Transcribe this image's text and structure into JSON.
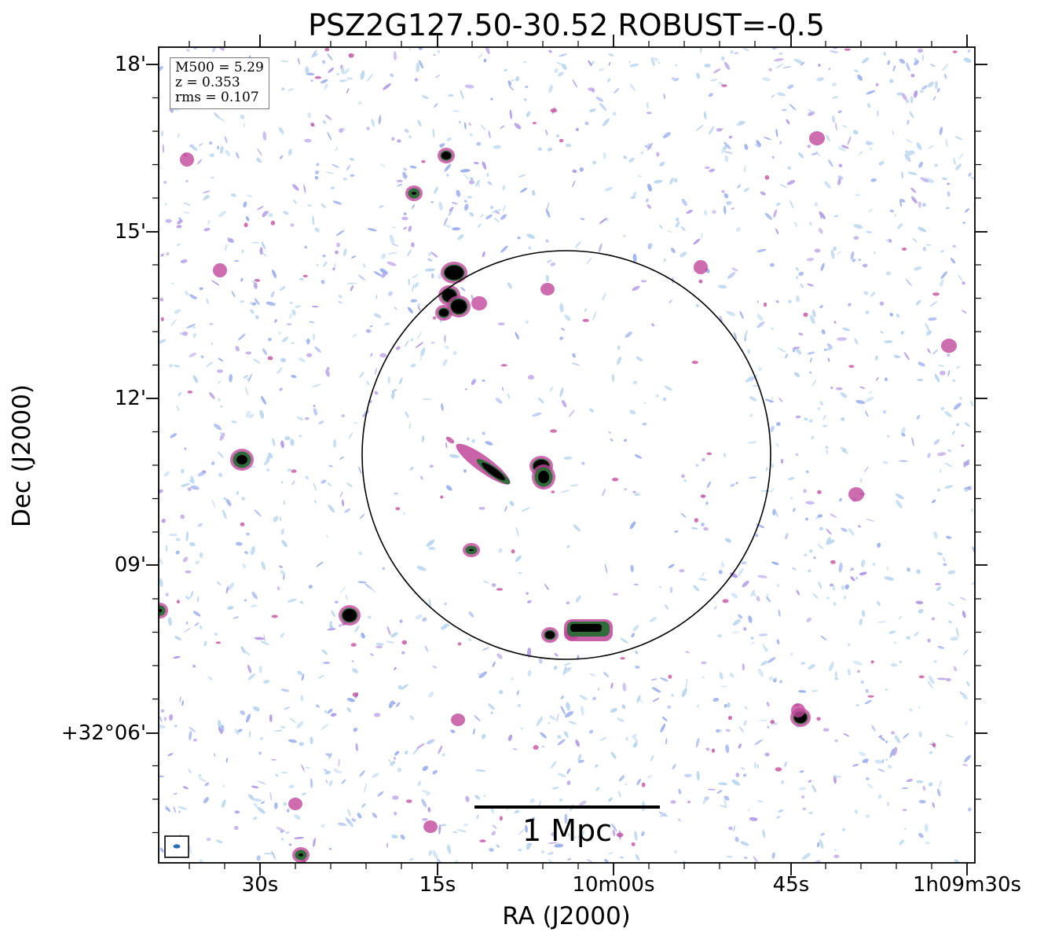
{
  "title": "PSZ2G127.50-30.52 ROBUST=-0.5",
  "axes": {
    "xlabel": "RA (J2000)",
    "ylabel": "Dec (J2000)",
    "x_ticks": [
      "30s",
      "15s",
      "10m00s",
      "45s",
      "1h09m30s"
    ],
    "y_ticks": [
      "18'",
      "15'",
      "12'",
      "09'",
      "+32°06'"
    ]
  },
  "info": {
    "m500": "M500 = 5.29",
    "z": "z = 0.353",
    "rms": "rms = 0.107"
  },
  "scalebar": {
    "label": "1 Mpc"
  },
  "colors": {
    "noise_light": "#bcd8ee",
    "noise_blue": "#9fb2ee",
    "noise_purple": "#b59ee6",
    "emission_pink": "#c0479a",
    "emission_green": "#2f6b3b",
    "emission_core": "#000000",
    "frame": "#000000"
  }
}
